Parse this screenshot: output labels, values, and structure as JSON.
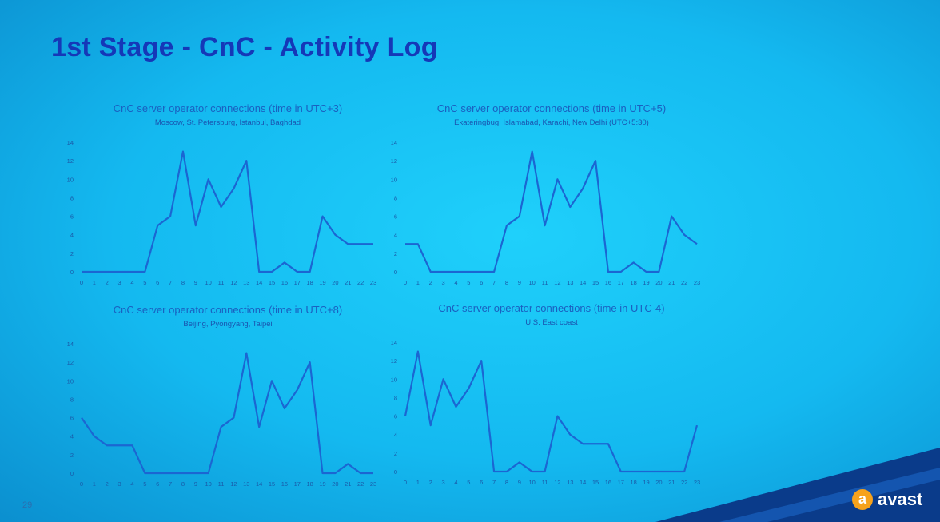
{
  "slide": {
    "title": "1st Stage - CnC - Activity Log",
    "page_number": "29",
    "logo_text": "avast",
    "logo_icon": "a",
    "colors": {
      "title": "#1538b8",
      "line": "#1b66d2",
      "background": "#14b9f0",
      "logo_accent": "#f6a21c"
    }
  },
  "chart_data": [
    {
      "type": "line",
      "title": "CnC server operator connections (time in UTC+3)",
      "subtitle": "Moscow, St. Petersburg, Istanbul, Baghdad",
      "x": [
        "0",
        "1",
        "2",
        "3",
        "4",
        "5",
        "6",
        "7",
        "8",
        "9",
        "10",
        "11",
        "12",
        "13",
        "14",
        "15",
        "16",
        "17",
        "18",
        "19",
        "20",
        "21",
        "22",
        "23"
      ],
      "y_ticks": [
        "0",
        "2",
        "4",
        "6",
        "8",
        "10",
        "12",
        "14"
      ],
      "ylim": [
        0,
        14
      ],
      "values": [
        0,
        0,
        0,
        0,
        0,
        0,
        5,
        6,
        13,
        5,
        10,
        7,
        9,
        12,
        0,
        0,
        1,
        0,
        0,
        6,
        4,
        3,
        3,
        3
      ]
    },
    {
      "type": "line",
      "title": "CnC server operator connections (time in UTC+5)",
      "subtitle": "Ekateringbug, Islamabad, Karachi, New Delhi (UTC+5:30)",
      "x": [
        "0",
        "1",
        "2",
        "3",
        "4",
        "5",
        "6",
        "7",
        "8",
        "9",
        "10",
        "11",
        "12",
        "13",
        "14",
        "15",
        "16",
        "17",
        "18",
        "19",
        "20",
        "21",
        "22",
        "23"
      ],
      "y_ticks": [
        "0",
        "2",
        "4",
        "6",
        "8",
        "10",
        "12",
        "14"
      ],
      "ylim": [
        0,
        14
      ],
      "values": [
        3,
        3,
        0,
        0,
        0,
        0,
        0,
        0,
        5,
        6,
        13,
        5,
        10,
        7,
        9,
        12,
        0,
        0,
        1,
        0,
        0,
        6,
        4,
        3
      ]
    },
    {
      "type": "line",
      "title": "CnC server operator connections (time in UTC+8)",
      "subtitle": "Beijing, Pyongyang, Taipei",
      "x": [
        "0",
        "1",
        "2",
        "3",
        "4",
        "5",
        "6",
        "7",
        "8",
        "9",
        "10",
        "11",
        "12",
        "13",
        "14",
        "15",
        "16",
        "17",
        "18",
        "19",
        "20",
        "21",
        "22",
        "23"
      ],
      "y_ticks": [
        "0",
        "2",
        "4",
        "6",
        "8",
        "10",
        "12",
        "14"
      ],
      "ylim": [
        0,
        14
      ],
      "values": [
        6,
        4,
        3,
        3,
        3,
        0,
        0,
        0,
        0,
        0,
        0,
        5,
        6,
        13,
        5,
        10,
        7,
        9,
        12,
        0,
        0,
        1,
        0,
        0
      ]
    },
    {
      "type": "line",
      "title": "CnC server operator connections (time in UTC-4)",
      "subtitle": "U.S. East coast",
      "x": [
        "0",
        "1",
        "2",
        "3",
        "4",
        "5",
        "6",
        "7",
        "8",
        "9",
        "10",
        "11",
        "12",
        "13",
        "14",
        "15",
        "16",
        "17",
        "18",
        "19",
        "20",
        "21",
        "22",
        "23"
      ],
      "y_ticks": [
        "0",
        "2",
        "4",
        "6",
        "8",
        "10",
        "12",
        "14"
      ],
      "ylim": [
        0,
        14
      ],
      "values": [
        6,
        13,
        5,
        10,
        7,
        9,
        12,
        0,
        0,
        1,
        0,
        0,
        6,
        4,
        3,
        3,
        3,
        0,
        0,
        0,
        0,
        0,
        0,
        5
      ]
    }
  ]
}
